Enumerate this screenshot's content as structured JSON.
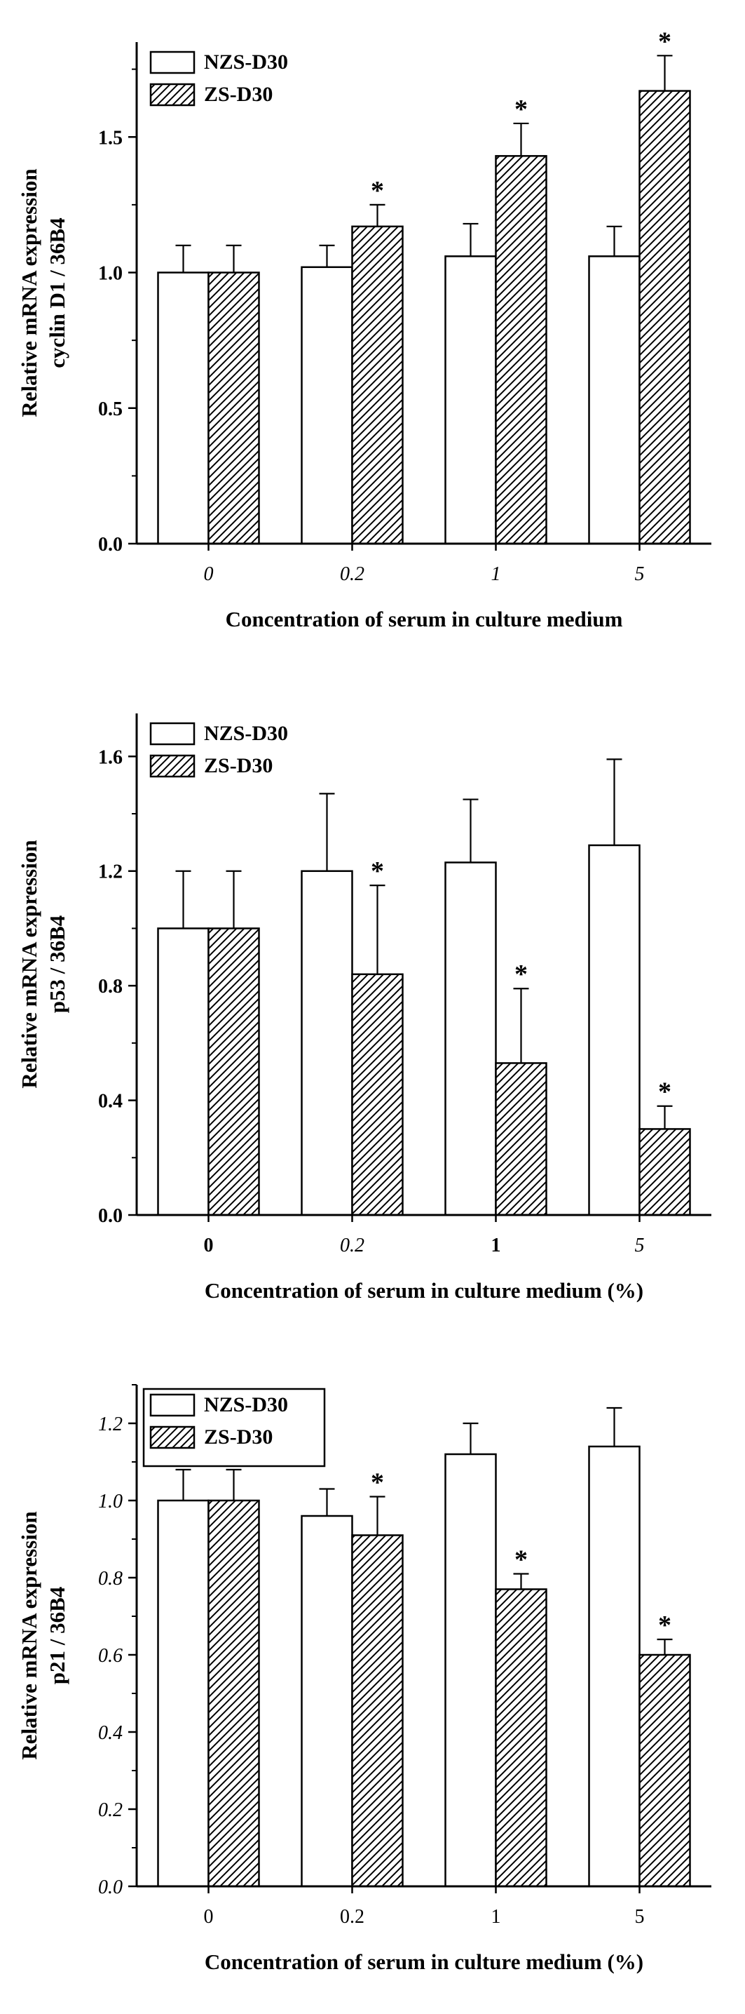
{
  "page": {
    "background": "#ffffff",
    "text_color": "#000000"
  },
  "chart_data": [
    {
      "type": "bar",
      "panel": "top",
      "title": "",
      "ylabel_lines": [
        "Relative mRNA expression",
        "cyclin D1 / 36B4"
      ],
      "xlabel": "Concentration of serum in culture medium",
      "categories": [
        "0",
        "0.2",
        "1",
        "5"
      ],
      "xtick_styles": [
        "italic",
        "italic",
        "italic",
        "italic"
      ],
      "ylim": [
        0,
        1.85
      ],
      "ytick_values": [
        0.0,
        0.5,
        1.0,
        1.5
      ],
      "ytick_labels": [
        "0.0",
        "0.5",
        "1.0",
        "1.5"
      ],
      "ytick_style": "bold",
      "legend": {
        "labels": [
          "NZS-D30",
          "ZS-D30"
        ],
        "box": false
      },
      "sig_marker": "*",
      "series": [
        {
          "name": "NZS-D30",
          "fill": "white",
          "values": [
            1.0,
            1.02,
            1.06,
            1.06
          ],
          "errors": [
            0.1,
            0.08,
            0.12,
            0.11
          ],
          "sig": [
            false,
            false,
            false,
            false
          ]
        },
        {
          "name": "ZS-D30",
          "fill": "hatch",
          "values": [
            1.0,
            1.17,
            1.43,
            1.67
          ],
          "errors": [
            0.1,
            0.08,
            0.12,
            0.13
          ],
          "sig": [
            false,
            true,
            true,
            true
          ]
        }
      ]
    },
    {
      "type": "bar",
      "panel": "middle",
      "title": "",
      "ylabel_lines": [
        "Relative mRNA expression",
        "p53 / 36B4"
      ],
      "xlabel": "Concentration of serum in culture medium (%)",
      "categories": [
        "0",
        "0.2",
        "1",
        "5"
      ],
      "xtick_styles": [
        "bold",
        "italic",
        "bold",
        "italic"
      ],
      "ylim": [
        0,
        1.75
      ],
      "ytick_values": [
        0.0,
        0.4,
        0.8,
        1.2,
        1.6
      ],
      "ytick_labels": [
        "0.0",
        "0.4",
        "0.8",
        "1.2",
        "1.6"
      ],
      "ytick_style": "bold",
      "legend": {
        "labels": [
          "NZS-D30",
          "ZS-D30"
        ],
        "box": false
      },
      "sig_marker": "*",
      "series": [
        {
          "name": "NZS-D30",
          "fill": "white",
          "values": [
            1.0,
            1.2,
            1.23,
            1.29
          ],
          "errors": [
            0.2,
            0.27,
            0.22,
            0.3
          ],
          "sig": [
            false,
            false,
            false,
            false
          ]
        },
        {
          "name": "ZS-D30",
          "fill": "hatch",
          "values": [
            1.0,
            0.84,
            0.53,
            0.3
          ],
          "errors": [
            0.2,
            0.31,
            0.26,
            0.08
          ],
          "sig": [
            false,
            true,
            true,
            true
          ]
        }
      ]
    },
    {
      "type": "bar",
      "panel": "bottom",
      "title": "",
      "ylabel_lines": [
        "Relative mRNA expression",
        "p21 / 36B4"
      ],
      "xlabel": "Concentration of serum in culture medium (%)",
      "categories": [
        "0",
        "0.2",
        "1",
        "5"
      ],
      "xtick_styles": [
        "normal",
        "normal",
        "normal",
        "normal"
      ],
      "ylim": [
        0,
        1.3
      ],
      "ytick_values": [
        0.0,
        0.2,
        0.4,
        0.6,
        0.8,
        1.0,
        1.2
      ],
      "ytick_labels": [
        "0.0",
        "0.2",
        "0.4",
        "0.6",
        "0.8",
        "1.0",
        "1.2"
      ],
      "ytick_style": "italic",
      "legend": {
        "labels": [
          "NZS-D30",
          "ZS-D30"
        ],
        "box": true
      },
      "sig_marker": "*",
      "series": [
        {
          "name": "NZS-D30",
          "fill": "white",
          "values": [
            1.0,
            0.96,
            1.12,
            1.14
          ],
          "errors": [
            0.08,
            0.07,
            0.08,
            0.1
          ],
          "sig": [
            false,
            false,
            false,
            false
          ]
        },
        {
          "name": "ZS-D30",
          "fill": "hatch",
          "values": [
            1.0,
            0.91,
            0.77,
            0.6
          ],
          "errors": [
            0.08,
            0.1,
            0.04,
            0.04
          ],
          "sig": [
            false,
            true,
            true,
            true
          ]
        }
      ]
    }
  ]
}
